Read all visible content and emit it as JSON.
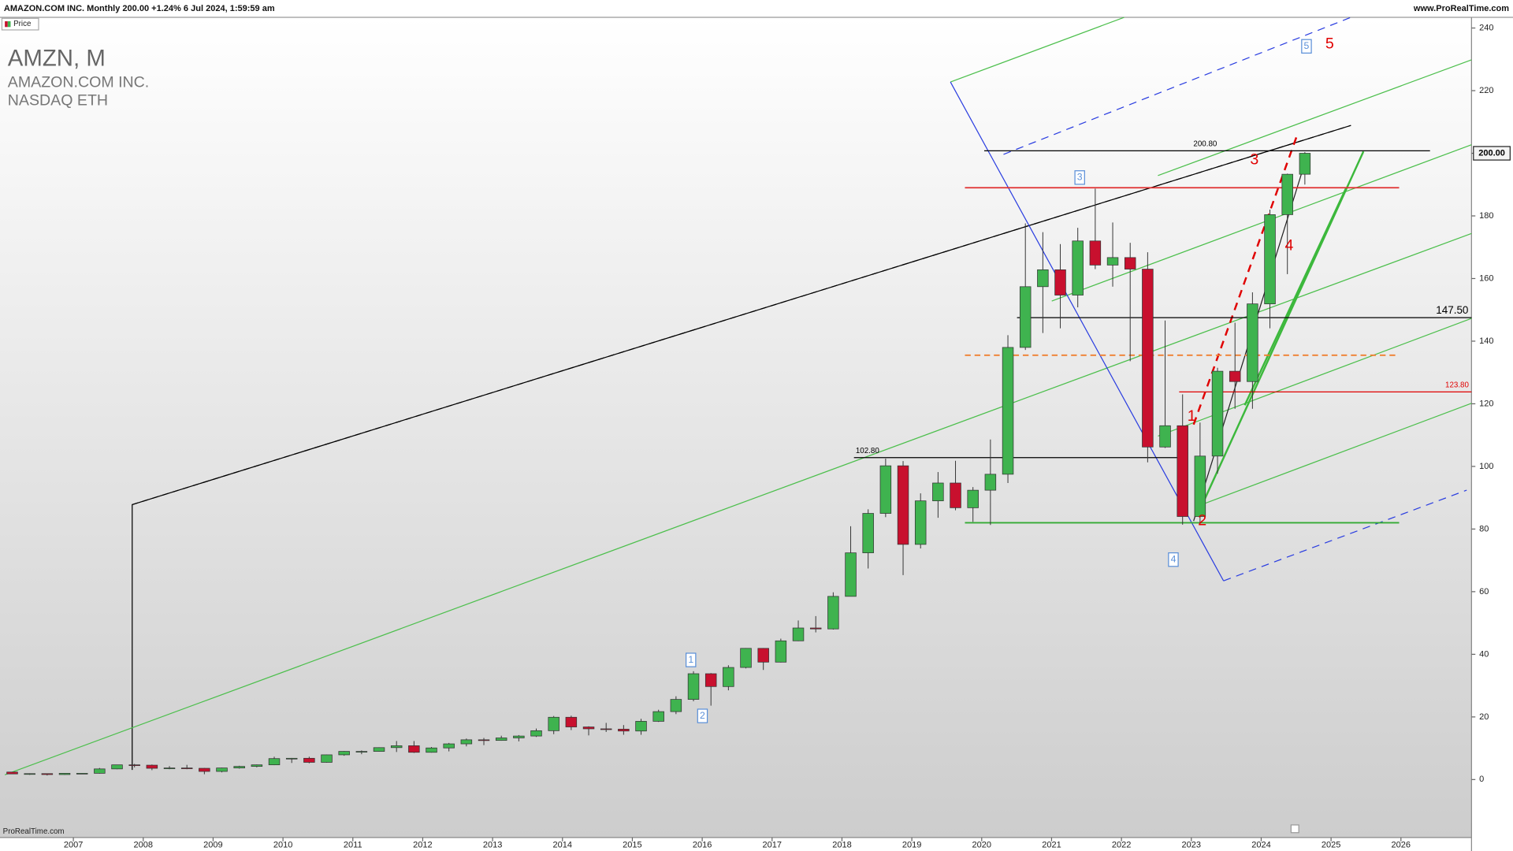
{
  "header": {
    "title": "AMAZON.COM INC. Monthly 200.00 +1.24% 6 Jul 2024, 1:59:59 am",
    "site": "www.ProRealTime.com"
  },
  "chart_data": {
    "type": "candlestick",
    "title": "AMZN, M",
    "subtitle": [
      "AMAZON.COM INC.",
      "NASDAQ ETH"
    ],
    "footer": "ProRealTime.com",
    "x": [
      2006.125,
      2006.375,
      2006.625,
      2006.875,
      2007.125,
      2007.375,
      2007.625,
      2007.875,
      2008.125,
      2008.375,
      2008.625,
      2008.875,
      2009.125,
      2009.375,
      2009.625,
      2009.875,
      2010.125,
      2010.375,
      2010.625,
      2010.875,
      2011.125,
      2011.375,
      2011.625,
      2011.875,
      2012.125,
      2012.375,
      2012.625,
      2012.875,
      2013.125,
      2013.375,
      2013.625,
      2013.875,
      2014.125,
      2014.375,
      2014.625,
      2014.875,
      2015.125,
      2015.375,
      2015.625,
      2015.875,
      2016.125,
      2016.375,
      2016.625,
      2016.875,
      2017.125,
      2017.375,
      2017.625,
      2017.875,
      2018.125,
      2018.375,
      2018.625,
      2018.875,
      2019.125,
      2019.375,
      2019.625,
      2019.875,
      2020.125,
      2020.375,
      2020.625,
      2020.875,
      2021.125,
      2021.375,
      2021.625,
      2021.875,
      2022.125,
      2022.375,
      2022.625,
      2022.875,
      2023.125,
      2023.375,
      2023.625,
      2023.875,
      2024.125,
      2024.375,
      2024.625
    ],
    "series": [
      {
        "name": "Price",
        "up_color": "#3fb34f",
        "down_color": "#c8102e",
        "ohlc": [
          [
            2.4,
            2.4,
            1.8,
            1.8
          ],
          [
            1.8,
            2.0,
            1.5,
            1.9
          ],
          [
            1.9,
            1.9,
            1.3,
            1.6
          ],
          [
            1.6,
            2.1,
            1.5,
            2.0
          ],
          [
            2.0,
            2.1,
            1.8,
            2.0
          ],
          [
            2.0,
            3.7,
            1.9,
            3.4
          ],
          [
            3.4,
            4.7,
            3.3,
            4.7
          ],
          [
            4.7,
            5.0,
            3.9,
            4.6
          ],
          [
            4.6,
            4.8,
            3.0,
            3.6
          ],
          [
            3.6,
            4.3,
            3.3,
            3.7
          ],
          [
            3.7,
            4.7,
            3.3,
            3.6
          ],
          [
            3.6,
            3.7,
            1.7,
            2.6
          ],
          [
            2.6,
            3.8,
            2.3,
            3.7
          ],
          [
            3.7,
            4.4,
            3.5,
            4.2
          ],
          [
            4.2,
            4.8,
            3.9,
            4.7
          ],
          [
            4.7,
            7.3,
            4.6,
            6.7
          ],
          [
            6.7,
            6.9,
            5.3,
            6.8
          ],
          [
            6.8,
            7.3,
            5.2,
            5.5
          ],
          [
            5.5,
            8.0,
            5.4,
            7.9
          ],
          [
            7.9,
            9.1,
            7.6,
            9.0
          ],
          [
            9.0,
            9.3,
            8.1,
            9.0
          ],
          [
            9.0,
            10.3,
            8.9,
            10.2
          ],
          [
            10.2,
            12.3,
            8.8,
            10.8
          ],
          [
            10.8,
            12.3,
            8.5,
            8.7
          ],
          [
            8.7,
            10.4,
            8.6,
            10.1
          ],
          [
            10.1,
            11.7,
            9.0,
            11.4
          ],
          [
            11.4,
            13.1,
            10.6,
            12.7
          ],
          [
            12.7,
            13.3,
            11.0,
            12.5
          ],
          [
            12.5,
            14.0,
            12.4,
            13.3
          ],
          [
            13.3,
            14.2,
            12.2,
            13.9
          ],
          [
            13.9,
            16.3,
            13.6,
            15.6
          ],
          [
            15.6,
            20.3,
            14.5,
            19.9
          ],
          [
            19.9,
            20.4,
            15.8,
            16.8
          ],
          [
            16.8,
            17.0,
            14.1,
            16.2
          ],
          [
            16.2,
            18.1,
            15.2,
            16.1
          ],
          [
            16.1,
            17.4,
            14.3,
            15.5
          ],
          [
            15.5,
            19.4,
            14.3,
            18.6
          ],
          [
            18.6,
            22.3,
            18.4,
            21.7
          ],
          [
            21.7,
            26.6,
            20.9,
            25.6
          ],
          [
            25.6,
            34.6,
            25.0,
            33.8
          ],
          [
            33.8,
            34.0,
            23.6,
            29.7
          ],
          [
            29.7,
            36.5,
            28.5,
            35.8
          ],
          [
            35.8,
            42.0,
            35.5,
            41.9
          ],
          [
            41.9,
            42.0,
            35.0,
            37.5
          ],
          [
            37.5,
            45.0,
            37.4,
            44.3
          ],
          [
            44.3,
            50.8,
            44.2,
            48.4
          ],
          [
            48.4,
            52.2,
            47.0,
            48.1
          ],
          [
            48.1,
            59.8,
            47.9,
            58.5
          ],
          [
            58.5,
            80.9,
            58.5,
            72.4
          ],
          [
            72.4,
            86.3,
            67.4,
            85.0
          ],
          [
            85.0,
            102.5,
            83.8,
            100.2
          ],
          [
            100.2,
            101.7,
            65.3,
            75.1
          ],
          [
            75.1,
            91.4,
            73.8,
            89.0
          ],
          [
            89.0,
            98.2,
            83.6,
            94.7
          ],
          [
            94.7,
            101.8,
            86.0,
            86.8
          ],
          [
            86.8,
            93.4,
            82.3,
            92.4
          ],
          [
            92.4,
            108.6,
            81.3,
            97.5
          ],
          [
            97.5,
            141.9,
            94.7,
            138.0
          ],
          [
            138.0,
            177.6,
            137.2,
            157.4
          ],
          [
            157.4,
            174.8,
            142.6,
            162.8
          ],
          [
            162.8,
            171.0,
            144.1,
            154.7
          ],
          [
            154.7,
            176.2,
            150.8,
            172.0
          ],
          [
            172.0,
            188.7,
            163.0,
            164.3
          ],
          [
            164.3,
            177.9,
            157.4,
            166.7
          ],
          [
            166.7,
            171.4,
            133.6,
            163.0
          ],
          [
            163.0,
            168.4,
            101.3,
            106.2
          ],
          [
            106.2,
            146.6,
            105.9,
            113.0
          ],
          [
            113.0,
            123.0,
            81.4,
            84.0
          ],
          [
            84.0,
            114.0,
            81.7,
            103.3
          ],
          [
            103.3,
            131.5,
            97.7,
            130.4
          ],
          [
            130.4,
            145.9,
            118.4,
            127.1
          ],
          [
            127.1,
            155.6,
            118.4,
            151.9
          ],
          [
            151.9,
            182.0,
            144.1,
            180.4
          ],
          [
            180.4,
            193.5,
            161.4,
            193.3
          ],
          [
            193.3,
            200.4,
            190.0,
            200.0
          ]
        ]
      }
    ],
    "xlim": [
      2005.95,
      2027.01
    ],
    "xticks": [
      2007,
      2008,
      2009,
      2010,
      2011,
      2012,
      2013,
      2014,
      2015,
      2016,
      2017,
      2018,
      2019,
      2020,
      2021,
      2022,
      2023,
      2024,
      2025,
      2026
    ],
    "ylim": [
      -18.5,
      243.4
    ],
    "yticks": [
      0,
      20,
      40,
      60,
      80,
      100,
      120,
      140,
      160,
      180,
      200,
      220,
      240
    ],
    "price_tag": {
      "value": 200,
      "label": "200.00"
    },
    "levels": [
      {
        "value": 200.8,
        "label": "200.80",
        "color": "#000000"
      },
      {
        "value": 189,
        "color": "#e03030"
      },
      {
        "value": 147.5,
        "label": "147.50",
        "color": "#000000"
      },
      {
        "value": 135.5,
        "color": "#f08030"
      },
      {
        "value": 123.8,
        "label": "123.80",
        "color": "#e00000"
      },
      {
        "value": 102.8,
        "label": "102.80",
        "color": "#000000"
      },
      {
        "value": 82,
        "color": "#33aa33"
      }
    ],
    "wave_labels": {
      "red": [
        "1",
        "2",
        "3",
        "4",
        "5"
      ],
      "boxed": [
        "1",
        "2",
        "3",
        "4",
        "5"
      ]
    }
  }
}
